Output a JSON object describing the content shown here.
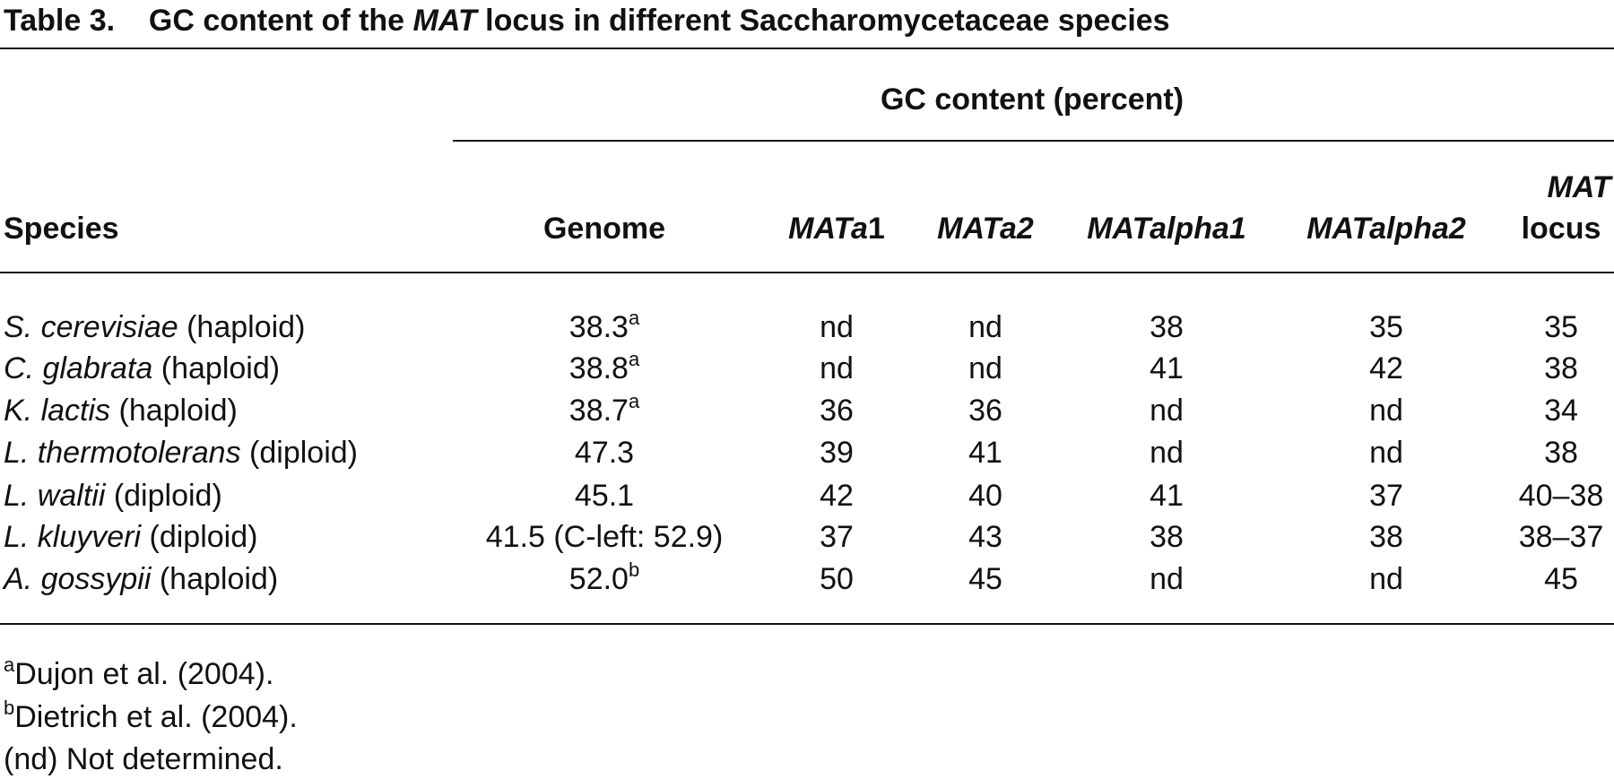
{
  "title": {
    "label": "Table 3.",
    "parts": [
      "GC content of the ",
      "MAT",
      " locus in different Saccharomycetaceae species"
    ]
  },
  "table": {
    "group_header": "GC content (percent)",
    "columns": [
      [
        "Species"
      ],
      [
        "Genome"
      ],
      [
        "MATa",
        "1"
      ],
      [
        "MATa2"
      ],
      [
        "MATalpha1"
      ],
      [
        "MATalpha2"
      ],
      [
        "MAT",
        "locus"
      ]
    ],
    "rows": [
      {
        "species": [
          "S. cerevisiae",
          "(haploid)"
        ],
        "genome": [
          "38.3",
          "a"
        ],
        "values": [
          "nd",
          "nd",
          "38",
          "35",
          "35"
        ]
      },
      {
        "species": [
          "C. glabrata",
          "(haploid)"
        ],
        "genome": [
          "38.8",
          "a"
        ],
        "values": [
          "nd",
          "nd",
          "41",
          "42",
          "38"
        ]
      },
      {
        "species": [
          "K. lactis",
          "(haploid)"
        ],
        "genome": [
          "38.7",
          "a"
        ],
        "values": [
          "36",
          "36",
          "nd",
          "nd",
          "34"
        ]
      },
      {
        "species": [
          "L. thermotolerans",
          "(diploid)"
        ],
        "genome": [
          "47.3"
        ],
        "values": [
          "39",
          "41",
          "nd",
          "nd",
          "38"
        ]
      },
      {
        "species": [
          "L. waltii",
          "(diploid)"
        ],
        "genome": [
          "45.1"
        ],
        "values": [
          "42",
          "40",
          "41",
          "37",
          "40–38"
        ]
      },
      {
        "species": [
          "L. kluyveri",
          "(diploid)"
        ],
        "genome": [
          "41.5 (C-left: 52.9)"
        ],
        "values": [
          "37",
          "43",
          "38",
          "38",
          "38–37"
        ]
      },
      {
        "species": [
          "A. gossypii",
          "(haploid)"
        ],
        "genome": [
          "52.0",
          "b"
        ],
        "values": [
          "50",
          "45",
          "nd",
          "nd",
          "45"
        ]
      }
    ]
  },
  "footnotes": [
    [
      "a",
      "Dujon et al. (2004)."
    ],
    [
      "b",
      "Dietrich et al. (2004)."
    ],
    [
      "(nd) Not determined."
    ]
  ]
}
